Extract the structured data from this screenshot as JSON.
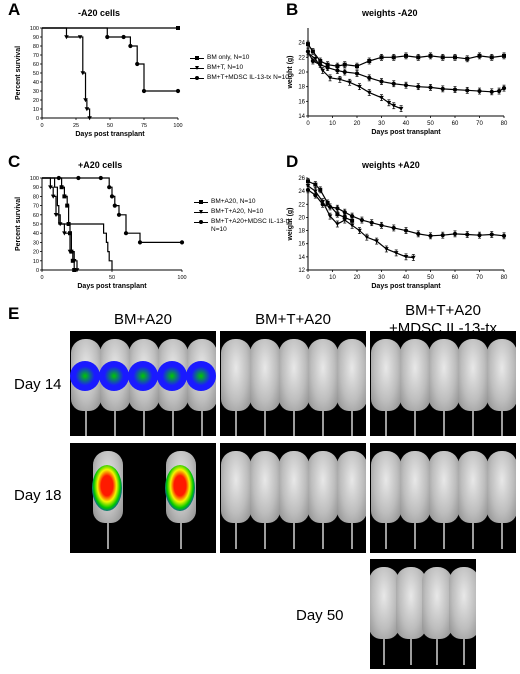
{
  "chart_data": [
    {
      "panel": "A",
      "type": "line",
      "title": "-A20 cells",
      "xlabel": "Days post transplant",
      "ylabel": "Percent survival",
      "xlim": [
        0,
        100
      ],
      "ylim": [
        0,
        100
      ],
      "xticks": [
        "0",
        "25",
        "50",
        "75",
        "100"
      ],
      "yticks": [
        "0",
        "10",
        "20",
        "30",
        "40",
        "50",
        "60",
        "70",
        "80",
        "90",
        "100"
      ],
      "grid": false,
      "legend_position": "right",
      "series": [
        {
          "name": "BM only, N=10",
          "marker": "square",
          "x": [
            0,
            100
          ],
          "y": [
            100,
            100
          ]
        },
        {
          "name": "BM+T, N=10",
          "marker": "triangle",
          "x": [
            0,
            18,
            28,
            30,
            32,
            33,
            35
          ],
          "y": [
            100,
            90,
            90,
            50,
            20,
            10,
            0
          ]
        },
        {
          "name": "BM+T+MDSC IL-13-tx N=10",
          "marker": "circle",
          "x": [
            0,
            48,
            60,
            65,
            70,
            75,
            100
          ],
          "y": [
            100,
            90,
            90,
            80,
            60,
            30,
            30
          ]
        }
      ]
    },
    {
      "panel": "B",
      "type": "line",
      "title": "weights -A20",
      "xlabel": "Days post transplant",
      "ylabel": "weight (g)",
      "xlim": [
        0,
        80
      ],
      "ylim": [
        14,
        26
      ],
      "xticks": [
        "0",
        "10",
        "20",
        "30",
        "40",
        "50",
        "60",
        "70",
        "80"
      ],
      "yticks": [
        "14",
        "16",
        "18",
        "20",
        "22",
        "24"
      ],
      "grid": false,
      "series": [
        {
          "marker": "square",
          "x": [
            0,
            2,
            5,
            8,
            12,
            15,
            20,
            25,
            30,
            35,
            40,
            45,
            50,
            55,
            60,
            65,
            70,
            75,
            80
          ],
          "y": [
            23.8,
            22.8,
            21.5,
            21.0,
            20.8,
            21.0,
            20.8,
            21.5,
            22.0,
            22.0,
            22.2,
            22.0,
            22.2,
            22.0,
            22.0,
            21.8,
            22.2,
            22.0,
            22.2
          ]
        },
        {
          "marker": "circle",
          "x": [
            0,
            2,
            5,
            8,
            12,
            15,
            20,
            25,
            30,
            35,
            40,
            45,
            50,
            55,
            60,
            65,
            70,
            75,
            78,
            80
          ],
          "y": [
            22.8,
            21.5,
            21.0,
            20.6,
            20.2,
            20.0,
            19.8,
            19.2,
            18.7,
            18.4,
            18.2,
            18.0,
            17.9,
            17.7,
            17.6,
            17.5,
            17.4,
            17.3,
            17.4,
            17.8
          ]
        },
        {
          "marker": "triangle",
          "x": [
            0,
            3,
            6,
            9,
            13,
            17,
            21,
            25,
            30,
            33,
            35,
            38
          ],
          "y": [
            22.6,
            21.8,
            20.2,
            19.2,
            19.0,
            18.6,
            18.0,
            17.2,
            16.5,
            15.8,
            15.4,
            15.0
          ]
        }
      ]
    },
    {
      "panel": "C",
      "type": "line",
      "title": "+A20 cells",
      "xlabel": "Days post transplant",
      "ylabel": "Percent survival",
      "xlim": [
        0,
        100
      ],
      "ylim": [
        0,
        100
      ],
      "xticks": [
        "0",
        "50",
        "100"
      ],
      "yticks": [
        "0",
        "10",
        "20",
        "30",
        "40",
        "50",
        "60",
        "70",
        "80",
        "90",
        "100"
      ],
      "grid": false,
      "legend_position": "right",
      "series": [
        {
          "name": "BM+A20, N=10",
          "marker": "square",
          "x": [
            0,
            14,
            16,
            18,
            19,
            20,
            21,
            22,
            23
          ],
          "y": [
            100,
            90,
            80,
            70,
            50,
            40,
            20,
            10,
            0
          ]
        },
        {
          "name": "BM+T+A20, N=10",
          "marker": "triangle",
          "x": [
            0,
            6,
            8,
            10,
            13,
            16,
            20,
            23,
            25
          ],
          "y": [
            100,
            90,
            80,
            60,
            50,
            40,
            20,
            10,
            0
          ]
        },
        {
          "name": "BM+T+A20+MDSC IL-13-tx, N=10",
          "marker": "circle",
          "x": [
            0,
            12,
            26,
            42,
            48,
            50,
            52,
            55,
            60,
            70,
            100
          ],
          "y": [
            100,
            100,
            100,
            100,
            90,
            80,
            70,
            60,
            40,
            30,
            30
          ]
        },
        {
          "marker": "plain",
          "x": [
            0,
            9,
            11,
            12,
            40,
            44,
            46,
            47,
            48,
            50
          ],
          "y": [
            100,
            90,
            70,
            50,
            50,
            40,
            30,
            20,
            10,
            0
          ]
        }
      ]
    },
    {
      "panel": "D",
      "type": "line",
      "title": "weights +A20",
      "xlabel": "Days post transplant",
      "ylabel": "weight (g)",
      "xlim": [
        0,
        80
      ],
      "ylim": [
        12,
        26
      ],
      "xticks": [
        "0",
        "10",
        "20",
        "30",
        "40",
        "50",
        "60",
        "70",
        "80"
      ],
      "yticks": [
        "12",
        "14",
        "16",
        "18",
        "20",
        "22",
        "24",
        "26"
      ],
      "grid": false,
      "series": [
        {
          "marker": "square",
          "x": [
            0,
            3,
            5,
            8,
            12,
            15,
            18
          ],
          "y": [
            25.5,
            25.0,
            24.2,
            22.2,
            20.5,
            20.0,
            19.5
          ]
        },
        {
          "marker": "triangle",
          "x": [
            0,
            3,
            6,
            9,
            12,
            15,
            18,
            21,
            24,
            28,
            32,
            36,
            40,
            43
          ],
          "y": [
            24.8,
            24.0,
            22.4,
            20.2,
            19.0,
            19.6,
            18.8,
            18.0,
            17.0,
            16.4,
            15.2,
            14.6,
            14.0,
            13.9
          ]
        },
        {
          "marker": "circle",
          "x": [
            0,
            3,
            6,
            9,
            12,
            15,
            18,
            22,
            26,
            30,
            35,
            40,
            45,
            50,
            55,
            60,
            65,
            70,
            75,
            80
          ],
          "y": [
            24.2,
            23.4,
            22.0,
            21.6,
            21.4,
            20.8,
            20.2,
            19.6,
            19.2,
            18.8,
            18.4,
            18.0,
            17.5,
            17.2,
            17.3,
            17.5,
            17.4,
            17.3,
            17.4,
            17.2
          ]
        }
      ]
    }
  ],
  "panel_e": {
    "letter": "E",
    "groups": [
      "BM+A20",
      "BM+T+A20",
      "BM+T+A20\n+MDSC IL-13-tx"
    ],
    "days": [
      "Day 14",
      "Day 18",
      "Day 50"
    ]
  },
  "letters": [
    "A",
    "B",
    "C",
    "D"
  ],
  "colors": {
    "signal_high": "#ff1a00",
    "signal_mid": "#f5f500",
    "signal_low": "#00c800",
    "signal_base": "#1a1aff",
    "signal_edge": "#8a2be2"
  }
}
